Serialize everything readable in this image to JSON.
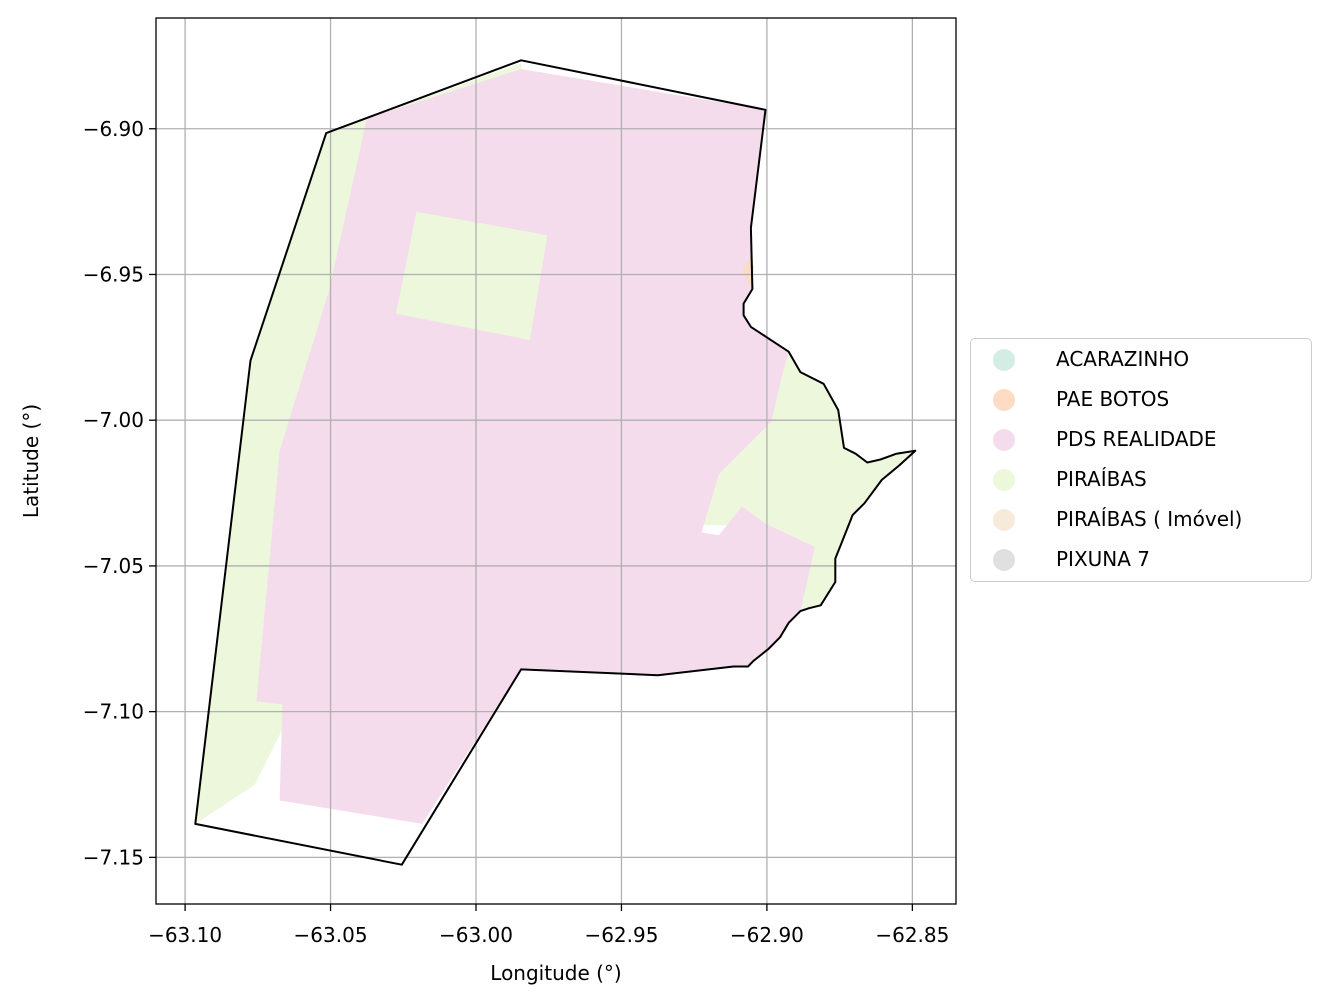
{
  "chart_data": {
    "type": "map",
    "xlabel": "Longitude (°)",
    "ylabel": "Latitude (°)",
    "xlim": [
      -63.11,
      -62.835
    ],
    "ylim": [
      -7.166,
      -6.862
    ],
    "x_ticks": [
      -63.1,
      -63.05,
      -63.0,
      -62.95,
      -62.9,
      -62.85
    ],
    "x_tick_labels": [
      "−63.10",
      "−63.05",
      "−63.00",
      "−62.95",
      "−62.90",
      "−62.85"
    ],
    "y_ticks": [
      -6.9,
      -6.95,
      -7.0,
      -7.05,
      -7.1,
      -7.15
    ],
    "y_tick_labels": [
      "−6.90",
      "−6.95",
      "−7.00",
      "−7.05",
      "−7.10",
      "−7.15"
    ],
    "grid": true,
    "legend_position": "right",
    "legend": [
      {
        "name": "ACARAZINHO",
        "color": "#d4ede4"
      },
      {
        "name": "PAE BOTOS",
        "color": "#fcdcc4"
      },
      {
        "name": "PDS REALIDADE",
        "color": "#f5dced"
      },
      {
        "name": "PIRAÍBAS",
        "color": "#ecf7dc"
      },
      {
        "name": "PIRAÍBAS ( Imóvel)",
        "color": "#f6eadb"
      },
      {
        "name": "PIXUNA 7",
        "color": "#e0e0e0"
      }
    ],
    "boundary": [
      [
        -63.0515,
        -6.9015
      ],
      [
        -62.9845,
        -6.8765
      ],
      [
        -62.9005,
        -6.8935
      ],
      [
        -62.9055,
        -6.934
      ],
      [
        -62.905,
        -6.955
      ],
      [
        -62.908,
        -6.96
      ],
      [
        -62.908,
        -6.964
      ],
      [
        -62.9055,
        -6.968
      ],
      [
        -62.8925,
        -6.9765
      ],
      [
        -62.8885,
        -6.9835
      ],
      [
        -62.8805,
        -6.9875
      ],
      [
        -62.8755,
        -6.9965
      ],
      [
        -62.8735,
        -7.0095
      ],
      [
        -62.8695,
        -7.0115
      ],
      [
        -62.8655,
        -7.0145
      ],
      [
        -62.861,
        -7.0135
      ],
      [
        -62.8555,
        -7.0115
      ],
      [
        -62.849,
        -7.0105
      ],
      [
        -62.8545,
        -7.0155
      ],
      [
        -62.8605,
        -7.0205
      ],
      [
        -62.8665,
        -7.0285
      ],
      [
        -62.8705,
        -7.0325
      ],
      [
        -62.8745,
        -7.0425
      ],
      [
        -62.8765,
        -7.0475
      ],
      [
        -62.8765,
        -7.0555
      ],
      [
        -62.8815,
        -7.0635
      ],
      [
        -62.8855,
        -7.0645
      ],
      [
        -62.8885,
        -7.0655
      ],
      [
        -62.8925,
        -7.0695
      ],
      [
        -62.8955,
        -7.0745
      ],
      [
        -62.8995,
        -7.0785
      ],
      [
        -62.9045,
        -7.0825
      ],
      [
        -62.9065,
        -7.0845
      ],
      [
        -62.9115,
        -7.0845
      ],
      [
        -62.9375,
        -7.0875
      ],
      [
        -62.9845,
        -7.0855
      ],
      [
        -63.0255,
        -7.1525
      ],
      [
        -63.0965,
        -7.1385
      ],
      [
        -63.0775,
        -6.9795
      ]
    ],
    "regions": [
      {
        "name": "PIRAÍBAS",
        "color": "#ecf7dc",
        "polygon": [
          [
            -63.0515,
            -6.9015
          ],
          [
            -62.9845,
            -6.8775
          ],
          [
            -62.9835,
            -6.9
          ],
          [
            -63.036,
            -7.005
          ],
          [
            -63.056,
            -7.085
          ],
          [
            -63.076,
            -7.125
          ],
          [
            -63.0965,
            -7.1385
          ],
          [
            -63.0775,
            -6.9795
          ]
        ]
      },
      {
        "name": "PIRAÍBAS",
        "color": "#ecf7dc",
        "polygon": [
          [
            -62.8925,
            -6.9765
          ],
          [
            -62.8885,
            -6.9835
          ],
          [
            -62.8805,
            -6.9875
          ],
          [
            -62.8755,
            -6.9965
          ],
          [
            -62.8735,
            -7.0095
          ],
          [
            -62.8695,
            -7.0115
          ],
          [
            -62.8655,
            -7.0145
          ],
          [
            -62.861,
            -7.0135
          ],
          [
            -62.8555,
            -7.0115
          ],
          [
            -62.849,
            -7.0105
          ],
          [
            -62.8545,
            -7.0155
          ],
          [
            -62.8605,
            -7.0205
          ],
          [
            -62.8665,
            -7.0285
          ],
          [
            -62.8705,
            -7.0325
          ],
          [
            -62.8745,
            -7.0425
          ],
          [
            -62.8765,
            -7.0475
          ],
          [
            -62.8765,
            -7.0555
          ],
          [
            -62.8815,
            -7.0635
          ],
          [
            -62.8855,
            -7.0645
          ],
          [
            -62.8885,
            -7.0655
          ],
          [
            -62.9015,
            -7.036
          ],
          [
            -62.9245,
            -7.036
          ],
          [
            -62.9205,
            -7.0215
          ],
          [
            -62.8995,
            -6.9985
          ]
        ]
      },
      {
        "name": "PDS REALIDADE",
        "color": "#f5dced",
        "polygon": [
          [
            -63.0375,
            -6.8965
          ],
          [
            -62.9845,
            -6.8795
          ],
          [
            -62.9005,
            -6.8935
          ],
          [
            -62.9055,
            -6.934
          ],
          [
            -62.905,
            -6.955
          ],
          [
            -62.908,
            -6.96
          ],
          [
            -62.908,
            -6.964
          ],
          [
            -62.9055,
            -6.968
          ],
          [
            -62.8925,
            -6.9765
          ],
          [
            -62.8945,
            -6.9835
          ],
          [
            -62.8985,
            -7.0005
          ],
          [
            -62.9165,
            -7.0185
          ],
          [
            -62.9225,
            -7.0385
          ],
          [
            -62.9165,
            -7.0395
          ],
          [
            -62.9085,
            -7.0295
          ],
          [
            -62.9005,
            -7.0355
          ],
          [
            -62.8835,
            -7.0435
          ],
          [
            -62.8885,
            -7.0655
          ],
          [
            -62.8925,
            -7.0695
          ],
          [
            -62.8955,
            -7.0745
          ],
          [
            -62.8995,
            -7.0785
          ],
          [
            -62.9045,
            -7.0825
          ],
          [
            -62.9065,
            -7.0845
          ],
          [
            -62.9115,
            -7.0845
          ],
          [
            -62.9375,
            -7.0875
          ],
          [
            -62.9845,
            -7.0855
          ],
          [
            -63.0185,
            -7.1385
          ],
          [
            -63.0675,
            -7.1305
          ],
          [
            -63.0665,
            -7.0975
          ],
          [
            -63.0755,
            -7.0965
          ],
          [
            -63.0675,
            -7.0105
          ],
          [
            -63.0505,
            -6.9555
          ]
        ]
      },
      {
        "name": "PIRAÍBAS",
        "color": "#ecf7dc",
        "polygon": [
          [
            -63.0205,
            -6.9285
          ],
          [
            -62.9755,
            -6.9365
          ],
          [
            -62.9815,
            -6.9725
          ],
          [
            -63.0275,
            -6.9635
          ]
        ]
      },
      {
        "name": "PAE BOTOS",
        "color": "#fcdcc4",
        "polygon": [
          [
            -62.9055,
            -6.9435
          ],
          [
            -62.9085,
            -6.9485
          ],
          [
            -62.9055,
            -6.9545
          ],
          [
            -62.9045,
            -6.9475
          ]
        ]
      }
    ]
  }
}
